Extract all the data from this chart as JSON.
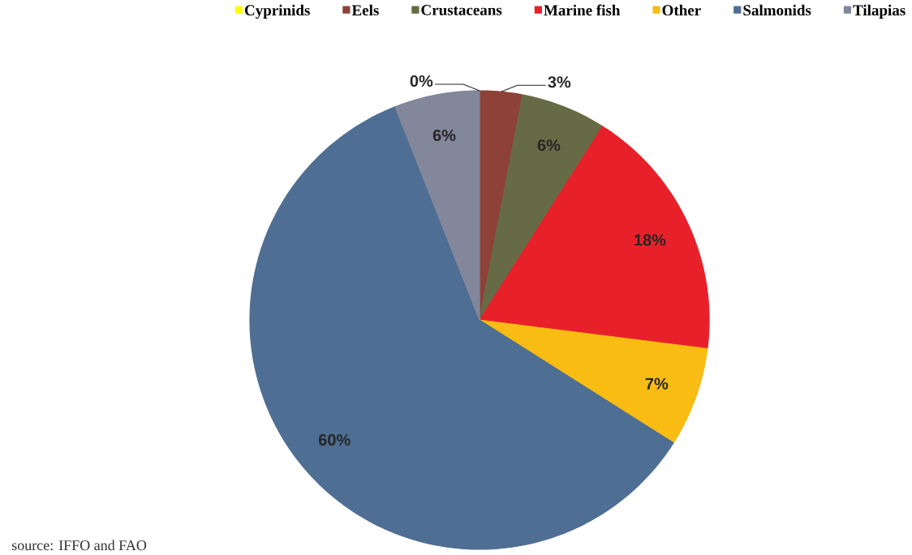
{
  "chart_data": {
    "type": "pie",
    "categories": [
      "Cyprinids",
      "Eels",
      "Crustaceans",
      "Marine fish",
      "Other",
      "Salmonids",
      "Tilapias"
    ],
    "values": [
      0,
      3,
      6,
      18,
      7,
      60,
      6
    ],
    "colors": [
      "#ffff00",
      "#8e4237",
      "#676b45",
      "#e8202a",
      "#f8bc12",
      "#4e6e93",
      "#82879b"
    ],
    "value_labels": [
      "0%",
      "3%",
      "6%",
      "18%",
      "7%",
      "60%",
      "6%"
    ],
    "legend": "top",
    "annotations": [
      "source: IFFO and FAO"
    ]
  }
}
